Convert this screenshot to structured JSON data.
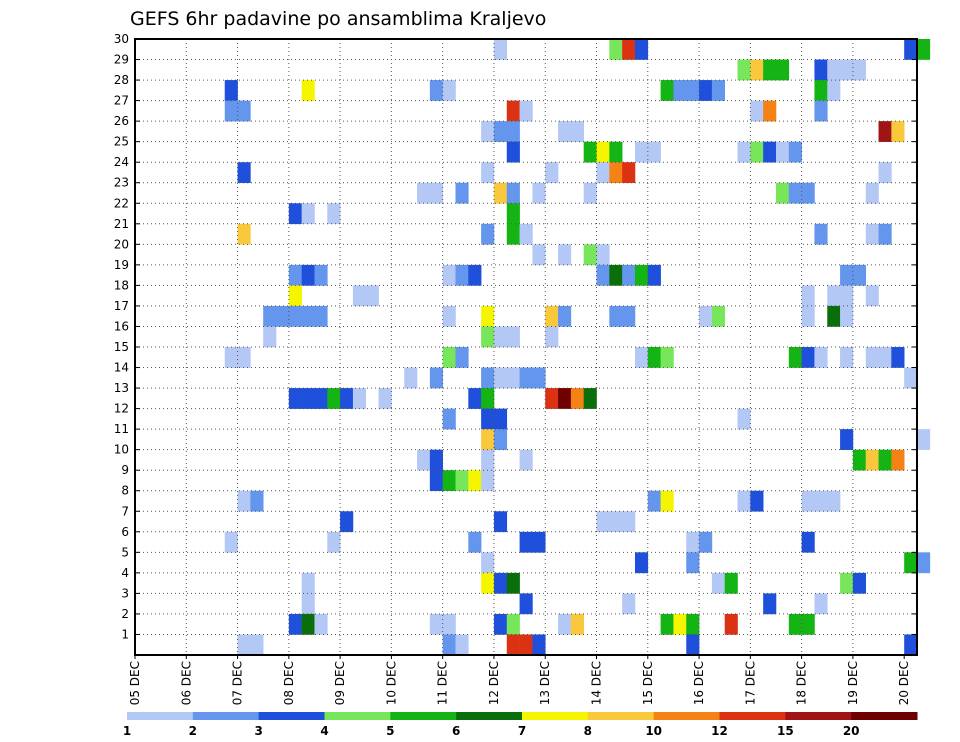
{
  "chart_data": {
    "type": "heatmap",
    "title": "GEFS 6hr padavine po ansamblima Kraljevo",
    "x_tick_labels": [
      "05 DEC",
      "06 DEC",
      "07 DEC",
      "08 DEC",
      "09 DEC",
      "10 DEC",
      "11 DEC",
      "12 DEC",
      "13 DEC",
      "14 DEC",
      "15 DEC",
      "16 DEC",
      "17 DEC",
      "18 DEC",
      "19 DEC",
      "20 DEC"
    ],
    "y_tick_labels": [
      "1",
      "2",
      "3",
      "4",
      "5",
      "6",
      "7",
      "8",
      "9",
      "10",
      "11",
      "12",
      "13",
      "14",
      "15",
      "16",
      "17",
      "18",
      "19",
      "20",
      "21",
      "22",
      "23",
      "24",
      "25",
      "26",
      "27",
      "28",
      "29",
      "30"
    ],
    "xlim": [
      0,
      61
    ],
    "ylim": [
      0,
      30
    ],
    "grid": true,
    "legend_placement": "bottom",
    "legend_labels": [
      "1",
      "2",
      "3",
      "4",
      "5",
      "6",
      "7",
      "8",
      "10",
      "12",
      "15",
      "20"
    ],
    "colors": [
      "#b4c8f5",
      "#6496ee",
      "#1e50dc",
      "#78e65a",
      "#14b414",
      "#0a6e0a",
      "#f5f500",
      "#fac83c",
      "#f58214",
      "#dc3214",
      "#a01414",
      "#6e0000"
    ],
    "cells": [
      [
        30,
        28,
        0
      ],
      [
        30,
        37,
        3
      ],
      [
        30,
        38,
        9
      ],
      [
        30,
        39,
        2
      ],
      [
        30,
        60,
        2
      ],
      [
        30,
        61,
        4
      ],
      [
        29,
        47,
        3
      ],
      [
        29,
        48,
        7
      ],
      [
        29,
        49,
        4
      ],
      [
        29,
        50,
        4
      ],
      [
        29,
        53,
        2
      ],
      [
        29,
        54,
        0
      ],
      [
        29,
        55,
        0
      ],
      [
        29,
        56,
        0
      ],
      [
        28,
        7,
        2
      ],
      [
        28,
        13,
        6
      ],
      [
        28,
        23,
        1
      ],
      [
        28,
        24,
        0
      ],
      [
        28,
        41,
        4
      ],
      [
        28,
        42,
        1
      ],
      [
        28,
        43,
        1
      ],
      [
        28,
        44,
        2
      ],
      [
        28,
        45,
        1
      ],
      [
        28,
        53,
        4
      ],
      [
        28,
        54,
        0
      ],
      [
        27,
        7,
        1
      ],
      [
        27,
        8,
        1
      ],
      [
        27,
        29,
        9
      ],
      [
        27,
        30,
        0
      ],
      [
        27,
        48,
        0
      ],
      [
        27,
        49,
        8
      ],
      [
        27,
        53,
        1
      ],
      [
        26,
        27,
        0
      ],
      [
        26,
        28,
        1
      ],
      [
        26,
        29,
        1
      ],
      [
        26,
        33,
        0
      ],
      [
        26,
        34,
        0
      ],
      [
        26,
        58,
        10
      ],
      [
        26,
        59,
        7
      ],
      [
        25,
        29,
        2
      ],
      [
        25,
        35,
        4
      ],
      [
        25,
        36,
        6
      ],
      [
        25,
        37,
        4
      ],
      [
        25,
        39,
        0
      ],
      [
        25,
        40,
        0
      ],
      [
        25,
        47,
        0
      ],
      [
        25,
        48,
        3
      ],
      [
        25,
        49,
        2
      ],
      [
        25,
        50,
        0
      ],
      [
        25,
        51,
        1
      ],
      [
        24,
        8,
        2
      ],
      [
        24,
        27,
        0
      ],
      [
        24,
        32,
        0
      ],
      [
        24,
        36,
        0
      ],
      [
        24,
        37,
        8
      ],
      [
        24,
        38,
        9
      ],
      [
        24,
        58,
        0
      ],
      [
        23,
        22,
        0
      ],
      [
        23,
        23,
        0
      ],
      [
        23,
        25,
        1
      ],
      [
        23,
        28,
        7
      ],
      [
        23,
        29,
        1
      ],
      [
        23,
        31,
        0
      ],
      [
        23,
        35,
        0
      ],
      [
        23,
        50,
        3
      ],
      [
        23,
        51,
        1
      ],
      [
        23,
        52,
        1
      ],
      [
        23,
        57,
        0
      ],
      [
        22,
        12,
        2
      ],
      [
        22,
        13,
        0
      ],
      [
        22,
        15,
        0
      ],
      [
        22,
        29,
        4
      ],
      [
        21,
        8,
        7
      ],
      [
        21,
        27,
        1
      ],
      [
        21,
        29,
        4
      ],
      [
        21,
        30,
        0
      ],
      [
        21,
        53,
        1
      ],
      [
        21,
        57,
        0
      ],
      [
        21,
        58,
        1
      ],
      [
        20,
        31,
        0
      ],
      [
        20,
        33,
        0
      ],
      [
        20,
        35,
        3
      ],
      [
        20,
        36,
        0
      ],
      [
        19,
        12,
        1
      ],
      [
        19,
        13,
        2
      ],
      [
        19,
        14,
        1
      ],
      [
        19,
        24,
        0
      ],
      [
        19,
        25,
        1
      ],
      [
        19,
        26,
        2
      ],
      [
        19,
        36,
        1
      ],
      [
        19,
        37,
        5
      ],
      [
        19,
        38,
        1
      ],
      [
        19,
        39,
        4
      ],
      [
        19,
        40,
        2
      ],
      [
        19,
        55,
        1
      ],
      [
        19,
        56,
        1
      ],
      [
        18,
        12,
        6
      ],
      [
        18,
        17,
        0
      ],
      [
        18,
        18,
        0
      ],
      [
        18,
        52,
        0
      ],
      [
        18,
        54,
        0
      ],
      [
        18,
        55,
        0
      ],
      [
        18,
        57,
        0
      ],
      [
        17,
        10,
        1
      ],
      [
        17,
        11,
        1
      ],
      [
        17,
        12,
        1
      ],
      [
        17,
        13,
        1
      ],
      [
        17,
        14,
        1
      ],
      [
        17,
        24,
        0
      ],
      [
        17,
        27,
        6
      ],
      [
        17,
        32,
        7
      ],
      [
        17,
        33,
        1
      ],
      [
        17,
        37,
        1
      ],
      [
        17,
        38,
        1
      ],
      [
        17,
        44,
        0
      ],
      [
        17,
        45,
        3
      ],
      [
        17,
        52,
        0
      ],
      [
        17,
        54,
        5
      ],
      [
        17,
        55,
        0
      ],
      [
        16,
        10,
        0
      ],
      [
        16,
        27,
        3
      ],
      [
        16,
        28,
        0
      ],
      [
        16,
        29,
        0
      ],
      [
        16,
        32,
        0
      ],
      [
        15,
        7,
        0
      ],
      [
        15,
        8,
        0
      ],
      [
        15,
        24,
        3
      ],
      [
        15,
        25,
        1
      ],
      [
        15,
        39,
        0
      ],
      [
        15,
        40,
        4
      ],
      [
        15,
        41,
        3
      ],
      [
        15,
        51,
        4
      ],
      [
        15,
        52,
        2
      ],
      [
        15,
        53,
        0
      ],
      [
        15,
        55,
        0
      ],
      [
        15,
        57,
        0
      ],
      [
        15,
        58,
        0
      ],
      [
        15,
        59,
        2
      ],
      [
        14,
        21,
        0
      ],
      [
        14,
        23,
        1
      ],
      [
        14,
        27,
        1
      ],
      [
        14,
        28,
        0
      ],
      [
        14,
        29,
        0
      ],
      [
        14,
        30,
        1
      ],
      [
        14,
        31,
        1
      ],
      [
        14,
        60,
        0
      ],
      [
        13,
        12,
        2
      ],
      [
        13,
        13,
        2
      ],
      [
        13,
        14,
        2
      ],
      [
        13,
        15,
        4
      ],
      [
        13,
        16,
        2
      ],
      [
        13,
        17,
        0
      ],
      [
        13,
        19,
        0
      ],
      [
        13,
        26,
        2
      ],
      [
        13,
        27,
        4
      ],
      [
        13,
        32,
        9
      ],
      [
        13,
        33,
        11
      ],
      [
        13,
        34,
        8
      ],
      [
        13,
        35,
        5
      ],
      [
        12,
        24,
        1
      ],
      [
        12,
        27,
        2
      ],
      [
        12,
        28,
        2
      ],
      [
        12,
        47,
        0
      ],
      [
        11,
        27,
        7
      ],
      [
        11,
        28,
        1
      ],
      [
        11,
        55,
        2
      ],
      [
        11,
        61,
        0
      ],
      [
        10,
        22,
        0
      ],
      [
        10,
        23,
        2
      ],
      [
        10,
        27,
        0
      ],
      [
        10,
        30,
        0
      ],
      [
        10,
        56,
        4
      ],
      [
        10,
        57,
        7
      ],
      [
        10,
        58,
        4
      ],
      [
        10,
        59,
        8
      ],
      [
        9,
        23,
        2
      ],
      [
        9,
        24,
        4
      ],
      [
        9,
        25,
        3
      ],
      [
        9,
        26,
        6
      ],
      [
        9,
        27,
        0
      ],
      [
        8,
        8,
        0
      ],
      [
        8,
        9,
        1
      ],
      [
        8,
        40,
        1
      ],
      [
        8,
        41,
        6
      ],
      [
        8,
        47,
        0
      ],
      [
        8,
        48,
        2
      ],
      [
        8,
        52,
        0
      ],
      [
        8,
        53,
        0
      ],
      [
        8,
        54,
        0
      ],
      [
        7,
        16,
        2
      ],
      [
        7,
        28,
        2
      ],
      [
        7,
        36,
        0
      ],
      [
        7,
        37,
        0
      ],
      [
        7,
        38,
        0
      ],
      [
        6,
        7,
        0
      ],
      [
        6,
        15,
        0
      ],
      [
        6,
        26,
        1
      ],
      [
        6,
        30,
        2
      ],
      [
        6,
        31,
        2
      ],
      [
        6,
        43,
        0
      ],
      [
        6,
        44,
        1
      ],
      [
        6,
        52,
        2
      ],
      [
        5,
        27,
        0
      ],
      [
        5,
        39,
        2
      ],
      [
        5,
        43,
        1
      ],
      [
        5,
        60,
        4
      ],
      [
        5,
        61,
        1
      ],
      [
        4,
        13,
        0
      ],
      [
        4,
        27,
        6
      ],
      [
        4,
        28,
        2
      ],
      [
        4,
        29,
        5
      ],
      [
        4,
        45,
        0
      ],
      [
        4,
        46,
        4
      ],
      [
        4,
        55,
        3
      ],
      [
        4,
        56,
        2
      ],
      [
        3,
        13,
        0
      ],
      [
        3,
        30,
        2
      ],
      [
        3,
        38,
        0
      ],
      [
        3,
        49,
        2
      ],
      [
        3,
        53,
        0
      ],
      [
        2,
        12,
        2
      ],
      [
        2,
        13,
        5
      ],
      [
        2,
        14,
        0
      ],
      [
        2,
        23,
        0
      ],
      [
        2,
        24,
        0
      ],
      [
        2,
        28,
        2
      ],
      [
        2,
        29,
        3
      ],
      [
        2,
        33,
        0
      ],
      [
        2,
        34,
        7
      ],
      [
        2,
        41,
        4
      ],
      [
        2,
        42,
        6
      ],
      [
        2,
        43,
        4
      ],
      [
        2,
        46,
        9
      ],
      [
        2,
        51,
        4
      ],
      [
        2,
        52,
        4
      ],
      [
        1,
        8,
        0
      ],
      [
        1,
        9,
        0
      ],
      [
        1,
        24,
        1
      ],
      [
        1,
        25,
        0
      ],
      [
        1,
        29,
        9
      ],
      [
        1,
        30,
        9
      ],
      [
        1,
        31,
        2
      ],
      [
        1,
        43,
        2
      ],
      [
        1,
        60,
        2
      ]
    ]
  }
}
